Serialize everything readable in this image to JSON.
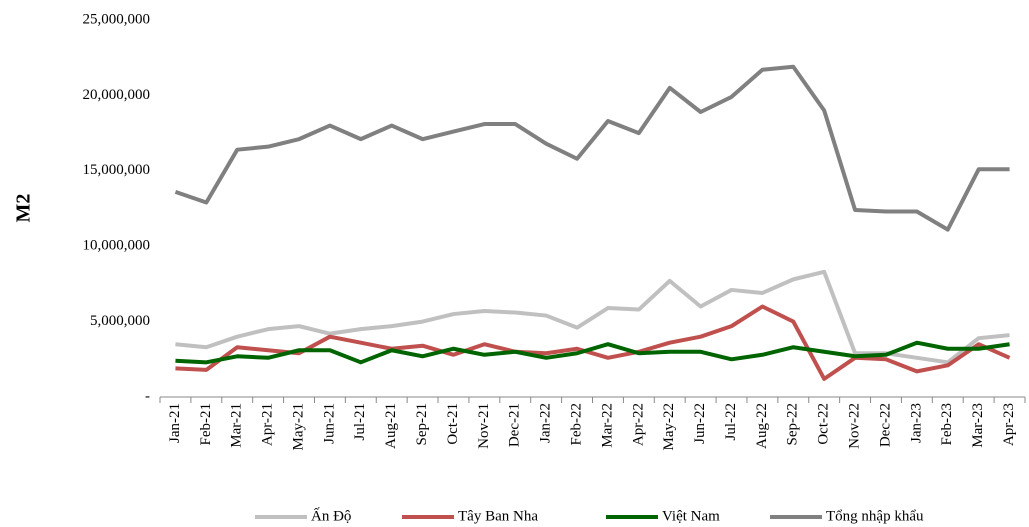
{
  "chart_data": {
    "type": "line",
    "y_label": "M2",
    "categories": [
      "Jan-21",
      "Feb-21",
      "Mar-21",
      "Apr-21",
      "May-21",
      "Jun-21",
      "Jul-21",
      "Aug-21",
      "Sep-21",
      "Oct-21",
      "Nov-21",
      "Dec-21",
      "Jan-22",
      "Feb-22",
      "Mar-22",
      "Apr-22",
      "May-22",
      "Jun-22",
      "Jul-22",
      "Aug-22",
      "Sep-22",
      "Oct-22",
      "Nov-22",
      "Dec-22",
      "Jan-23",
      "Feb-23",
      "Mar-23",
      "Apr-23"
    ],
    "series": [
      {
        "name": "Ấn Độ",
        "color": "#c0c0c0",
        "values": [
          3500000,
          3300000,
          4000000,
          4500000,
          4700000,
          4200000,
          4500000,
          4700000,
          5000000,
          5500000,
          5700000,
          5600000,
          5400000,
          4600000,
          5900000,
          5800000,
          7700000,
          6000000,
          7100000,
          6900000,
          7800000,
          8300000,
          2900000,
          2900000,
          2600000,
          2300000,
          3900000,
          4100000
        ]
      },
      {
        "name": "Tây Ban Nha",
        "color": "#c0504d",
        "values": [
          1900000,
          1800000,
          3300000,
          3100000,
          2900000,
          4000000,
          3600000,
          3200000,
          3400000,
          2800000,
          3500000,
          3000000,
          2900000,
          3200000,
          2600000,
          3000000,
          3600000,
          4000000,
          4700000,
          6000000,
          5000000,
          1200000,
          2600000,
          2500000,
          1700000,
          2100000,
          3500000,
          2600000
        ]
      },
      {
        "name": "Việt Nam",
        "color": "#006400",
        "values": [
          2400000,
          2300000,
          2700000,
          2600000,
          3100000,
          3100000,
          2300000,
          3100000,
          2700000,
          3200000,
          2800000,
          3000000,
          2600000,
          2900000,
          3500000,
          2900000,
          3000000,
          3000000,
          2500000,
          2800000,
          3300000,
          3000000,
          2700000,
          2800000,
          3600000,
          3200000,
          3200000,
          3500000
        ]
      },
      {
        "name": "Tổng nhập khẩu",
        "color": "#808080",
        "values": [
          13600000,
          12900000,
          16400000,
          16600000,
          17100000,
          18000000,
          17100000,
          18000000,
          17100000,
          17600000,
          18100000,
          18100000,
          16800000,
          15800000,
          18300000,
          17500000,
          20500000,
          18900000,
          19900000,
          21700000,
          21900000,
          19000000,
          12400000,
          12300000,
          12300000,
          11100000,
          15100000,
          15100000
        ]
      }
    ],
    "ylim": [
      0,
      25000000
    ],
    "yticks": [
      {
        "value": 0,
        "label": "-"
      },
      {
        "value": 5000000,
        "label": "5,000,000"
      },
      {
        "value": 10000000,
        "label": "10,000,000"
      },
      {
        "value": 15000000,
        "label": "15,000,000"
      },
      {
        "value": 20000000,
        "label": "20,000,000"
      },
      {
        "value": 25000000,
        "label": "25,000,000"
      }
    ],
    "legend": "bottom"
  }
}
